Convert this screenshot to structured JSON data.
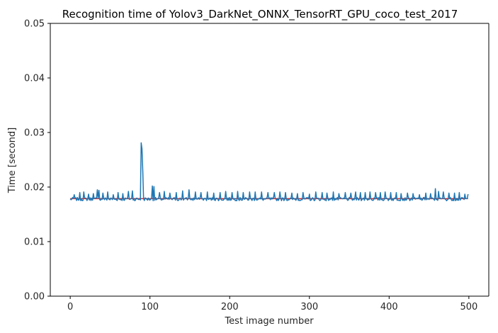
{
  "chart_data": {
    "type": "line",
    "title": "Recognition time of Yolov3_DarkNet_ONNX_TensorRT_GPU_coco_test_2017",
    "xlabel": "Test image number",
    "ylabel": "Time [second]",
    "xlim": [
      -25,
      525
    ],
    "ylim": [
      0.0,
      0.05
    ],
    "xticks": [
      0,
      100,
      200,
      300,
      400,
      500
    ],
    "yticks": [
      0.0,
      0.01,
      0.02,
      0.03,
      0.04,
      0.05
    ],
    "xtick_labels": [
      "0",
      "100",
      "200",
      "300",
      "400",
      "500"
    ],
    "ytick_labels": [
      "0.00",
      "0.01",
      "0.02",
      "0.03",
      "0.04",
      "0.05"
    ],
    "grid": false,
    "legend": "none",
    "series": [
      {
        "color": "#1f77b4",
        "x_start": 0,
        "x_step": 1,
        "baseline": 0.0177,
        "noise": 0.0006,
        "peaks": [
          [
            5,
            0.0186
          ],
          [
            12,
            0.019
          ],
          [
            17,
            0.0191
          ],
          [
            23,
            0.0187
          ],
          [
            29,
            0.0188
          ],
          [
            34,
            0.0195
          ],
          [
            36,
            0.0194
          ],
          [
            41,
            0.0189
          ],
          [
            47,
            0.0191
          ],
          [
            54,
            0.0186
          ],
          [
            60,
            0.019
          ],
          [
            66,
            0.0188
          ],
          [
            73,
            0.0192
          ],
          [
            78,
            0.0193
          ],
          [
            89,
            0.0281
          ],
          [
            90,
            0.027
          ],
          [
            91,
            0.023
          ],
          [
            103,
            0.0202
          ],
          [
            105,
            0.0201
          ],
          [
            112,
            0.019
          ],
          [
            118,
            0.0192
          ],
          [
            125,
            0.0189
          ],
          [
            133,
            0.019
          ],
          [
            141,
            0.0193
          ],
          [
            149,
            0.0195
          ],
          [
            157,
            0.0191
          ],
          [
            164,
            0.019
          ],
          [
            172,
            0.0191
          ],
          [
            180,
            0.0189
          ],
          [
            188,
            0.019
          ],
          [
            195,
            0.0192
          ],
          [
            203,
            0.019
          ],
          [
            210,
            0.0192
          ],
          [
            217,
            0.019
          ],
          [
            225,
            0.0191
          ],
          [
            232,
            0.0191
          ],
          [
            240,
            0.0191
          ],
          [
            248,
            0.019
          ],
          [
            256,
            0.019
          ],
          [
            263,
            0.0191
          ],
          [
            270,
            0.019
          ],
          [
            278,
            0.0189
          ],
          [
            285,
            0.0188
          ],
          [
            292,
            0.019
          ],
          [
            300,
            0.0187
          ],
          [
            308,
            0.0191
          ],
          [
            316,
            0.019
          ],
          [
            322,
            0.0189
          ],
          [
            330,
            0.0191
          ],
          [
            337,
            0.0188
          ],
          [
            345,
            0.019
          ],
          [
            352,
            0.0189
          ],
          [
            358,
            0.0191
          ],
          [
            364,
            0.019
          ],
          [
            370,
            0.019
          ],
          [
            376,
            0.0191
          ],
          [
            383,
            0.019
          ],
          [
            389,
            0.019
          ],
          [
            395,
            0.0191
          ],
          [
            402,
            0.019
          ],
          [
            409,
            0.019
          ],
          [
            415,
            0.0188
          ],
          [
            423,
            0.0189
          ],
          [
            430,
            0.0188
          ],
          [
            438,
            0.0186
          ],
          [
            446,
            0.0189
          ],
          [
            452,
            0.0188
          ],
          [
            458,
            0.0197
          ],
          [
            462,
            0.0192
          ],
          [
            468,
            0.0191
          ],
          [
            475,
            0.0189
          ],
          [
            482,
            0.0189
          ],
          [
            488,
            0.019
          ],
          [
            495,
            0.0187
          ],
          [
            499,
            0.0187
          ]
        ],
        "n_points": 500
      },
      {
        "color": "#d62728",
        "x": [
          0,
          499
        ],
        "y": [
          0.01787,
          0.01787
        ]
      }
    ]
  }
}
